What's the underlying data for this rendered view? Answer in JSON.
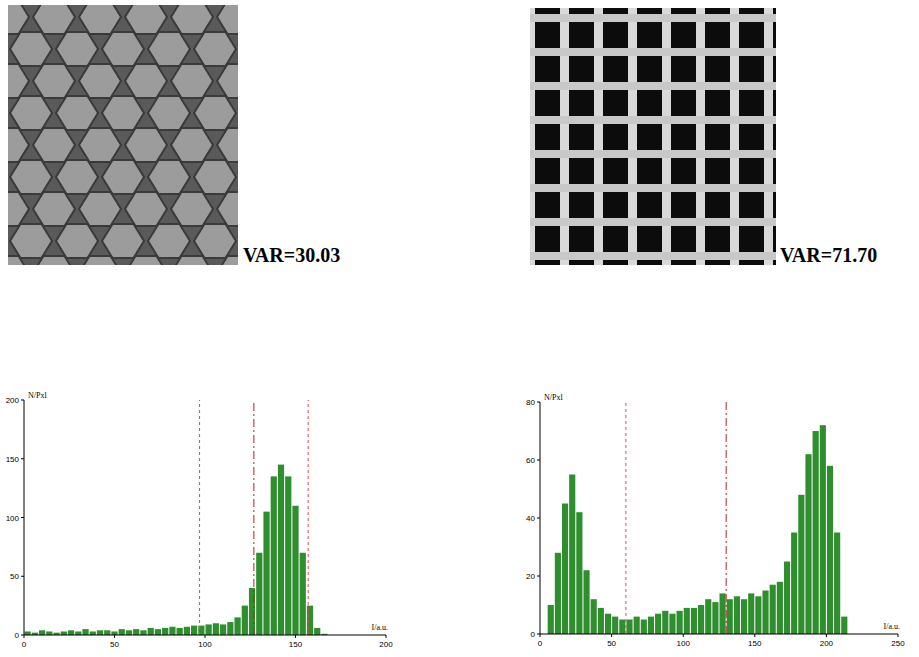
{
  "images": [
    {
      "caption": "VAR=30.03"
    },
    {
      "caption": "VAR=71.70"
    }
  ],
  "chart_data": [
    {
      "type": "histogram",
      "xlabel": "I/a.u.",
      "ylabel": "N/Pxl",
      "color": "#2f8f2f",
      "bins": [
        0,
        4,
        8,
        12,
        16,
        20,
        24,
        28,
        32,
        36,
        40,
        44,
        48,
        52,
        56,
        60,
        64,
        68,
        72,
        76,
        80,
        84,
        88,
        92,
        96,
        100,
        104,
        108,
        112,
        116,
        120,
        124,
        128,
        132,
        136,
        140,
        144,
        148,
        152,
        156,
        160,
        164,
        168,
        172,
        176,
        180,
        184,
        188,
        192,
        196,
        200
      ],
      "counts": [
        3,
        2,
        4,
        3,
        2,
        3,
        4,
        3,
        5,
        3,
        4,
        4,
        3,
        5,
        4,
        5,
        4,
        6,
        5,
        6,
        7,
        6,
        7,
        8,
        8,
        9,
        10,
        9,
        11,
        15,
        25,
        40,
        70,
        105,
        135,
        145,
        135,
        110,
        70,
        25,
        6,
        1,
        0,
        0,
        0,
        0,
        0,
        0,
        0,
        0
      ],
      "xlim": [
        0,
        200
      ],
      "ylim": [
        0,
        200
      ],
      "xticks": [
        0,
        50,
        100,
        150,
        200
      ],
      "yticks": [
        0,
        50,
        100,
        150,
        200
      ],
      "vlines": [
        {
          "x": 97,
          "line_style": "dashed"
        },
        {
          "x": 127,
          "line_style": "dashdot"
        },
        {
          "x": 157,
          "line_style": "dashed"
        }
      ]
    },
    {
      "type": "histogram",
      "xlabel": "I/a.u.",
      "ylabel": "N/Pxl",
      "color": "#2f8f2f",
      "bins": [
        5,
        10,
        15,
        20,
        25,
        30,
        35,
        40,
        45,
        50,
        55,
        60,
        65,
        70,
        75,
        80,
        85,
        90,
        95,
        100,
        105,
        110,
        115,
        120,
        125,
        130,
        135,
        140,
        145,
        150,
        155,
        160,
        165,
        170,
        175,
        180,
        185,
        190,
        195,
        200,
        205,
        210,
        215
      ],
      "counts": [
        10,
        28,
        45,
        55,
        42,
        22,
        12,
        9,
        7,
        6,
        5,
        5,
        6,
        5,
        6,
        7,
        8,
        7,
        8,
        9,
        9,
        10,
        12,
        11,
        14,
        12,
        13,
        12,
        14,
        13,
        15,
        17,
        18,
        25,
        35,
        48,
        62,
        70,
        72,
        58,
        35,
        6
      ],
      "xlim": [
        0,
        250
      ],
      "ylim": [
        0,
        80
      ],
      "xticks": [
        0,
        50,
        100,
        150,
        200,
        250
      ],
      "yticks": [
        0,
        20,
        40,
        60,
        80
      ],
      "vlines": [
        {
          "x": 60,
          "line_style": "dashed"
        },
        {
          "x": 130,
          "line_style": "dashdot"
        }
      ]
    }
  ]
}
